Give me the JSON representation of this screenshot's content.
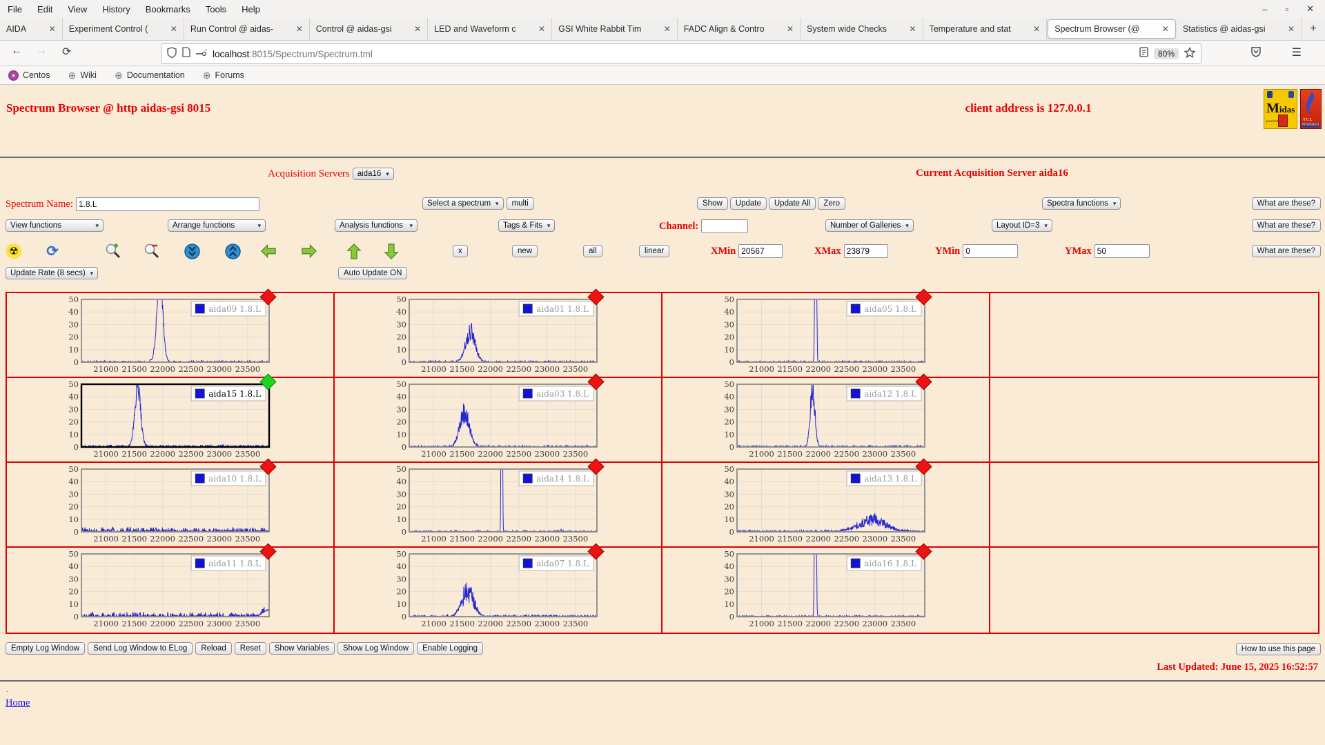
{
  "browser": {
    "menu": [
      "File",
      "Edit",
      "View",
      "History",
      "Bookmarks",
      "Tools",
      "Help"
    ],
    "window_controls": {
      "minimize": "–",
      "maximize": "▫",
      "close": "✕"
    },
    "tabs": [
      "AIDA",
      "Experiment Control (",
      "Run Control @ aidas-",
      "Control @ aidas-gsi",
      "LED and Waveform c",
      "GSI White Rabbit Tim",
      "FADC Align & Contro",
      "System wide Checks",
      "Temperature and stat",
      "Spectrum Browser (@",
      "Statistics @ aidas-gsi"
    ],
    "active_tab_index": 9,
    "new_tab": "+",
    "url_host": "localhost",
    "url_path": ":8015/Spectrum/Spectrum.tml",
    "zoom_badge": "80%",
    "bookmarks": [
      "Centos",
      "Wiki",
      "Documentation",
      "Forums"
    ]
  },
  "header": {
    "title": "Spectrum Browser @ http aidas-gsi 8015",
    "client_address": "client address is 127.0.0.1",
    "midas_logo_text": "idas",
    "midas_logo_m": "M",
    "midas_powered": "powered by",
    "tcl_logo_text": "TCL",
    "tcl_powered": "POWERED"
  },
  "controls": {
    "acq_label": "Acquisition Servers",
    "acq_select": "aida16",
    "current_server": "Current Acquisition Server aida16",
    "spectrum_name_label": "Spectrum Name:",
    "spectrum_name_value": "1.8.L",
    "select_spectrum": "Select a spectrum",
    "multi": "multi",
    "show": "Show",
    "update": "Update",
    "update_all": "Update All",
    "zero": "Zero",
    "spectra_functions": "Spectra functions",
    "what_are_these": "What are these?",
    "view_functions": "View functions",
    "arrange_functions": "Arrange functions",
    "analysis_functions": "Analysis functions",
    "tags_fits": "Tags & Fits",
    "channel_label": "Channel:",
    "channel_value": "",
    "num_galleries": "Number of Galleries",
    "layout_id": "Layout ID=3",
    "x_btn": "x",
    "new_btn": "new",
    "all_btn": "all",
    "linear_btn": "linear",
    "xmin_label": "XMin",
    "xmin_value": "20567",
    "xmax_label": "XMax",
    "xmax_value": "23879",
    "ymin_label": "YMin",
    "ymin_value": "0",
    "ymax_label": "YMax",
    "ymax_value": "50",
    "update_rate": "Update Rate (8 secs)",
    "auto_update": "Auto Update ON"
  },
  "chart_data": {
    "type": "line",
    "xlabel": "",
    "ylabel": "",
    "xlim": [
      20567,
      23879
    ],
    "ylim": [
      0,
      50
    ],
    "xticks": [
      21000,
      21500,
      22000,
      22500,
      23000,
      23500
    ],
    "yticks": [
      0,
      10,
      20,
      30,
      40,
      50
    ],
    "grid": true,
    "line_color": "#2626cd",
    "legend_position": "upper right",
    "grid_columns": 4,
    "charts": [
      {
        "label": "aida09 1.8.L",
        "marker": "red",
        "selected": false,
        "peaks": [
          {
            "c": 21950,
            "s": 52,
            "a": 68
          },
          {
            "c": 21790,
            "s": 14,
            "a": 1.6
          },
          {
            "c": 22690,
            "s": 10,
            "a": 1.3
          }
        ],
        "noise": 0.35,
        "jitter": 0.15
      },
      {
        "label": "aida01 1.8.L",
        "marker": "red",
        "selected": false,
        "peaks": [
          {
            "c": 21650,
            "s": 85,
            "a": 24
          }
        ],
        "noise": 0.35,
        "jitter": 0.35
      },
      {
        "label": "aida05 1.8.L",
        "marker": "red",
        "selected": false,
        "peaks": [
          {
            "c": 21955,
            "s": 11,
            "a": 400
          }
        ],
        "noise": 0.3,
        "jitter": 0.1
      },
      {
        "label": "aida15 1.8.L",
        "marker": "green",
        "selected": true,
        "peaks": [
          {
            "c": 21560,
            "s": 52,
            "a": 48
          }
        ],
        "noise": 0.55,
        "jitter": 0.2
      },
      {
        "label": "aida03 1.8.L",
        "marker": "red",
        "selected": false,
        "peaks": [
          {
            "c": 21545,
            "s": 85,
            "a": 27
          }
        ],
        "noise": 0.4,
        "jitter": 0.3
      },
      {
        "label": "aida12 1.8.L",
        "marker": "red",
        "selected": false,
        "peaks": [
          {
            "c": 21900,
            "s": 42,
            "a": 45
          }
        ],
        "noise": 0.4,
        "jitter": 0.25
      },
      {
        "label": "aida10 1.8.L",
        "marker": "red",
        "selected": false,
        "peaks": [],
        "noise": 1.15,
        "jitter": 0
      },
      {
        "label": "aida14 1.8.L",
        "marker": "red",
        "selected": false,
        "peaks": [
          {
            "c": 22200,
            "s": 9,
            "a": 400
          },
          {
            "c": 21400,
            "s": 8,
            "a": 1.1
          },
          {
            "c": 23250,
            "s": 8,
            "a": 1.2
          }
        ],
        "noise": 0.3,
        "jitter": 0.1
      },
      {
        "label": "aida13 1.8.L",
        "marker": "red",
        "selected": false,
        "peaks": [
          {
            "c": 22950,
            "s": 235,
            "a": 9
          }
        ],
        "noise": 0.45,
        "jitter": 0.55
      },
      {
        "label": "aida11 1.8.L",
        "marker": "red",
        "selected": false,
        "peaks": [
          {
            "c": 23860,
            "s": 90,
            "a": 5
          }
        ],
        "noise": 1.15,
        "jitter": 0
      },
      {
        "label": "aida07 1.8.L",
        "marker": "red",
        "selected": false,
        "peaks": [
          {
            "c": 21600,
            "s": 105,
            "a": 20
          }
        ],
        "noise": 0.45,
        "jitter": 0.45
      },
      {
        "label": "aida16 1.8.L",
        "marker": "red",
        "selected": false,
        "peaks": [
          {
            "c": 21950,
            "s": 11,
            "a": 400
          }
        ],
        "noise": 0.35,
        "jitter": 0.1
      }
    ]
  },
  "footer": {
    "buttons": [
      "Empty Log Window",
      "Send Log Window to ELog",
      "Reload",
      "Reset",
      "Show Variables",
      "Show Log Window",
      "Enable Logging"
    ],
    "help_button": "How to use this page",
    "last_updated": "Last Updated: June 15, 2025 16:52:57",
    "dot": ".",
    "home": "Home"
  }
}
